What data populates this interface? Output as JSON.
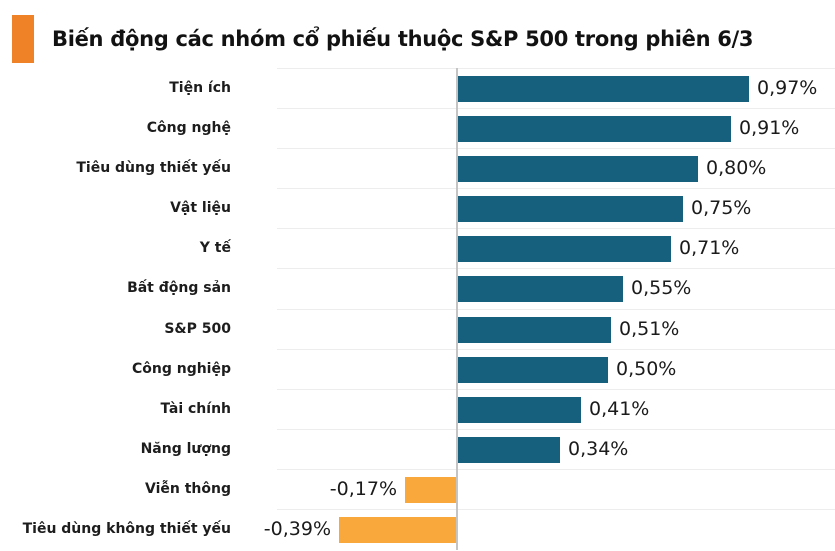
{
  "header": {
    "accent_color": "#EF8227"
  },
  "chart_data": {
    "type": "bar",
    "orientation": "horizontal",
    "title": "Biến động các nhóm cổ phiếu thuộc S&P 500 trong phiên 6/3",
    "unit": "%",
    "decimal_separator": ",",
    "categories": [
      "Tiện ích",
      "Công nghệ",
      "Tiêu dùng thiết yếu",
      "Vật liệu",
      "Y tế",
      "Bất động sản",
      "S&P 500",
      "Công nghiệp",
      "Tài chính",
      "Năng lượng",
      "Viễn thông",
      "Tiêu dùng không thiết yếu"
    ],
    "values": [
      0.97,
      0.91,
      0.8,
      0.75,
      0.71,
      0.55,
      0.51,
      0.5,
      0.41,
      0.34,
      -0.17,
      -0.39
    ],
    "value_labels": [
      "0,97%",
      "0,91%",
      "0,80%",
      "0,75%",
      "0,71%",
      "0,55%",
      "0,51%",
      "0,50%",
      "0,41%",
      "0,34%",
      "-0,17%",
      "-0,39%"
    ],
    "colors": {
      "positive_bar": "#16607E",
      "negative_bar": "#F9A83C"
    },
    "axis": {
      "zero_line": true,
      "zero_line_color": "#C4C4C4",
      "row_separator_color": "#EDEDED",
      "xlim": [
        -0.6,
        1.26
      ]
    },
    "grid": "horizontal-row-separators",
    "legend": "none",
    "value_label_position": "outside-end"
  }
}
